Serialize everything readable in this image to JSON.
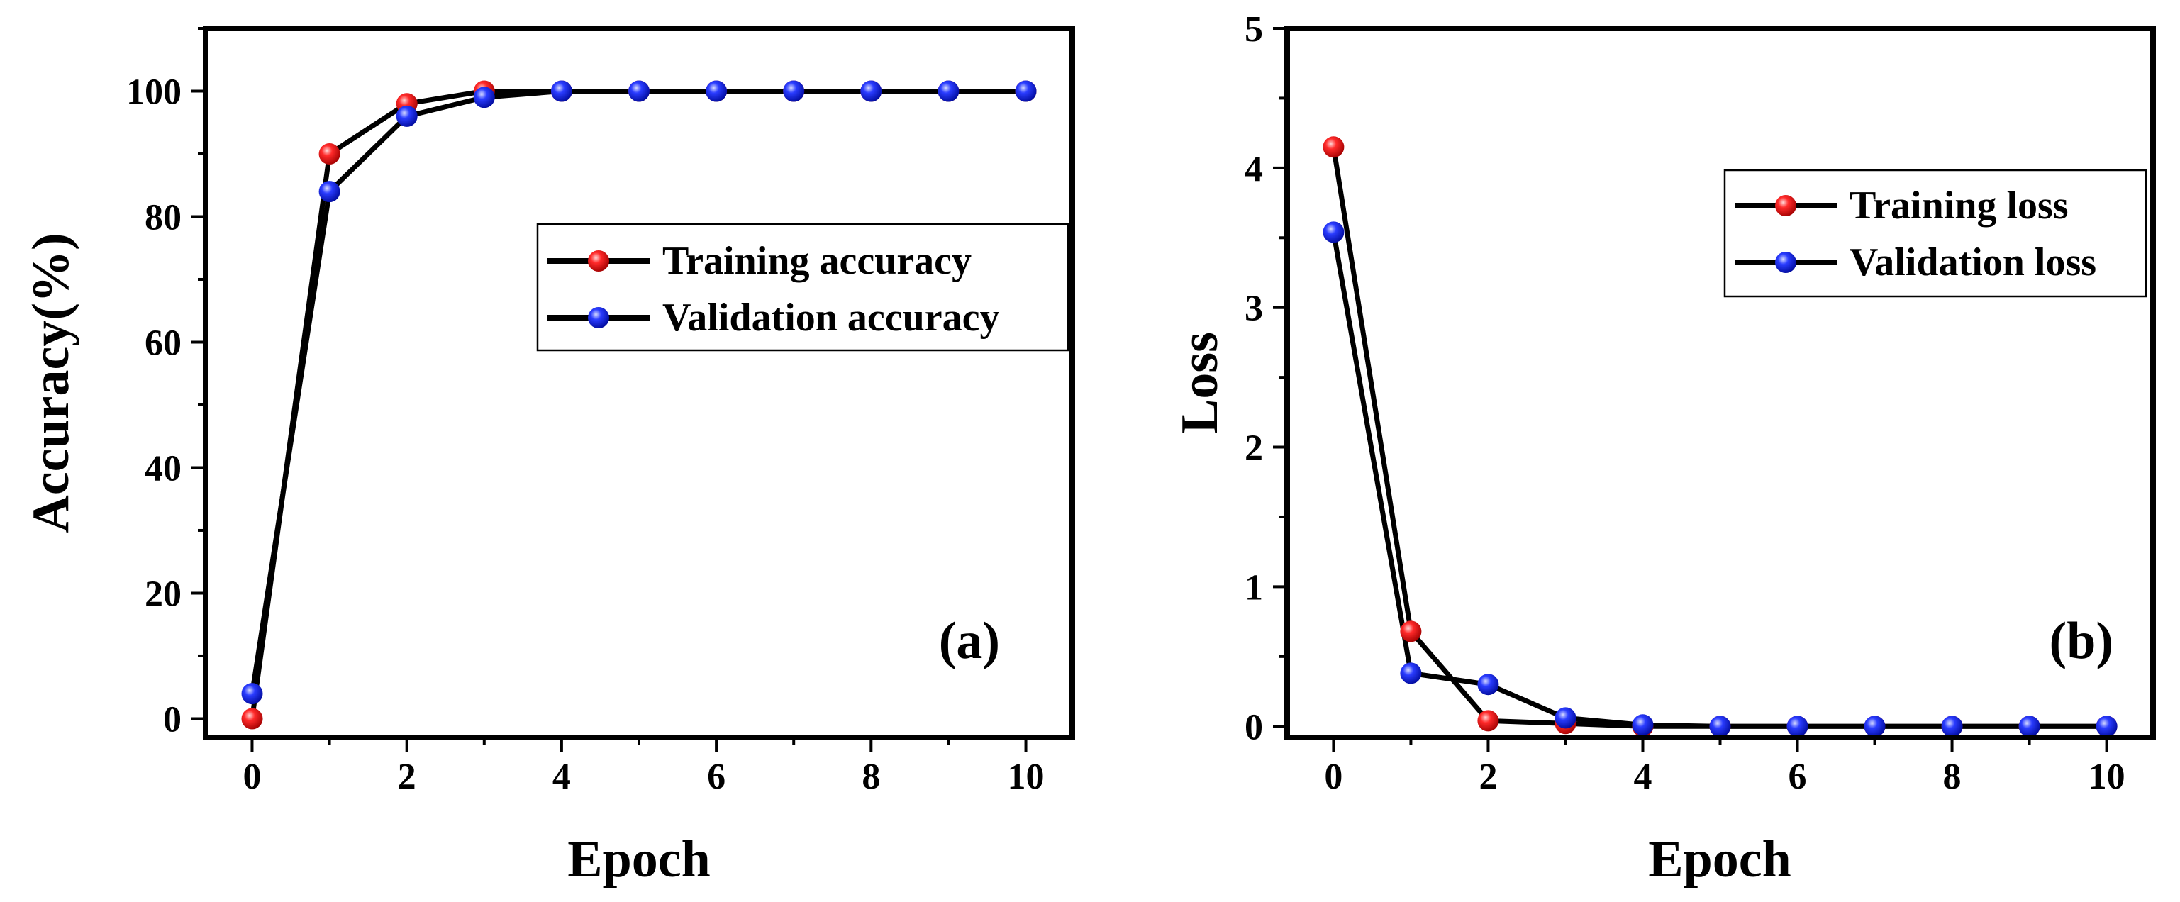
{
  "chart_data": [
    {
      "type": "line",
      "panel_label": "(a)",
      "xlabel": "Epoch",
      "ylabel": "Accuracy(%)",
      "xlim": [
        -0.6,
        10.6
      ],
      "ylim": [
        -3,
        110
      ],
      "x_ticks": [
        0,
        2,
        4,
        6,
        8,
        10
      ],
      "y_ticks": [
        0,
        20,
        40,
        60,
        80,
        100
      ],
      "x": [
        0,
        1,
        2,
        3,
        4,
        5,
        6,
        7,
        8,
        9,
        10
      ],
      "series": [
        {
          "name": "Training accuracy",
          "color": "#e00000",
          "values": [
            0,
            90,
            98,
            100,
            100,
            100,
            100,
            100,
            100,
            100,
            100
          ]
        },
        {
          "name": "Validation accuracy",
          "color": "#0a1ee0",
          "values": [
            4,
            84,
            96,
            99,
            100,
            100,
            100,
            100,
            100,
            100,
            100
          ]
        }
      ],
      "legend_position": "right-middle"
    },
    {
      "type": "line",
      "panel_label": "(b)",
      "xlabel": "Epoch",
      "ylabel": "Loss",
      "xlim": [
        -0.6,
        10.6
      ],
      "ylim": [
        -0.08,
        5
      ],
      "x_ticks": [
        0,
        2,
        4,
        6,
        8,
        10
      ],
      "y_ticks": [
        0,
        1,
        2,
        3,
        4,
        5
      ],
      "x": [
        0,
        1,
        2,
        3,
        4,
        5,
        6,
        7,
        8,
        9,
        10
      ],
      "series": [
        {
          "name": "Training loss",
          "color": "#e00000",
          "values": [
            4.15,
            0.68,
            0.04,
            0.02,
            0.0,
            0.0,
            0.0,
            0.0,
            0.0,
            0.0,
            0.0
          ]
        },
        {
          "name": "Validation loss",
          "color": "#0a1ee0",
          "values": [
            3.54,
            0.38,
            0.3,
            0.06,
            0.01,
            0.0,
            0.0,
            0.0,
            0.0,
            0.0,
            0.0
          ]
        }
      ],
      "legend_position": "top-right"
    }
  ]
}
